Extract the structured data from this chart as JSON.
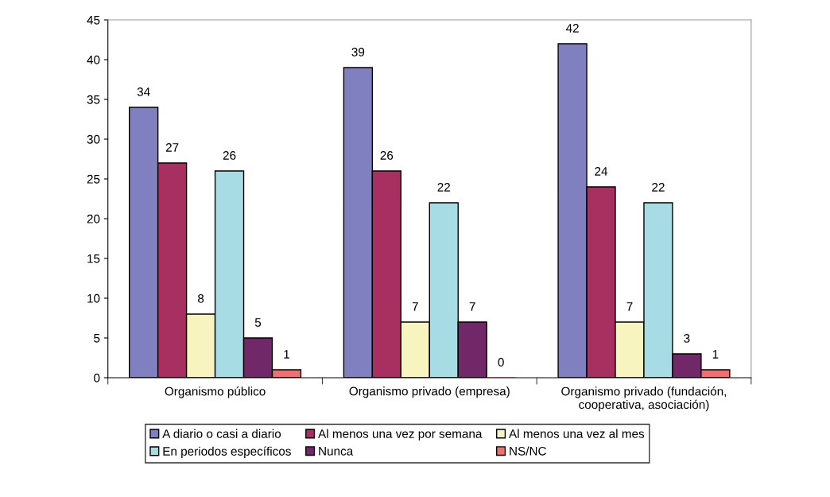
{
  "chart_data": {
    "type": "bar",
    "categories": [
      "Organismo público",
      "Organismo privado (empresa)",
      "Organismo privado (fundación,\ncooperativa, asociación)"
    ],
    "series": [
      {
        "name": "A diario o casi a diario",
        "color": "#8080c0",
        "values": [
          34,
          39,
          42
        ]
      },
      {
        "name": "Al menos una vez por semana",
        "color": "#a83060",
        "values": [
          27,
          26,
          24
        ]
      },
      {
        "name": "Al menos una vez al mes",
        "color": "#f8f4c0",
        "values": [
          8,
          7,
          7
        ]
      },
      {
        "name": "En periodos específicos",
        "color": "#a8dce4",
        "values": [
          26,
          22,
          22
        ]
      },
      {
        "name": "Nunca",
        "color": "#702868",
        "values": [
          5,
          7,
          3
        ]
      },
      {
        "name": "NS/NC",
        "color": "#f07070",
        "values": [
          1,
          0,
          1
        ]
      }
    ],
    "ylim": [
      0,
      45
    ],
    "yticks": [
      0,
      5,
      10,
      15,
      20,
      25,
      30,
      35,
      40,
      45
    ],
    "data_labels": true,
    "grid": false,
    "legend": "bottom"
  }
}
